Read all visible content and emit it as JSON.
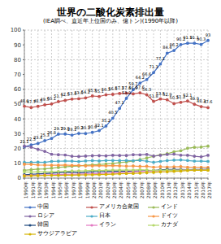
{
  "chart_data": {
    "type": "line",
    "title": "世界の二酸化炭素排出量",
    "subtitle": "(IEA調べ、直近年上位国のみ、億トン)(1990年以降)",
    "categories": [
      "1990年",
      "1991年",
      "1992年",
      "1993年",
      "1994年",
      "1995年",
      "1996年",
      "1997年",
      "1998年",
      "1999年",
      "2000年",
      "2001年",
      "2002年",
      "2003年",
      "2004年",
      "2005年",
      "2006年",
      "2007年",
      "2008年",
      "2009年",
      "2010年",
      "2011年",
      "2012年",
      "2013年",
      "2014年",
      "2015年",
      "2016年",
      "2017年"
    ],
    "ylim": [
      0,
      100
    ],
    "yticks": [
      0,
      10,
      20,
      30,
      40,
      50,
      60,
      70,
      80,
      90,
      100
    ],
    "grid": true,
    "legend": "bottom",
    "series": [
      {
        "name": "中国",
        "color": "#4472c4",
        "marker": "circle",
        "data_labels": true,
        "values": [
          21.1,
          22.5,
          23.4,
          25.3,
          26.8,
          29.7,
          29.8,
          29.1,
          30.2,
          30.1,
          30.9,
          32.1,
          35.2,
          40.5,
          47.1,
          53.9,
          59.7,
          64.2,
          66.6,
          71.3,
          77.1,
          84.4,
          86.2,
          90.2,
          91.1,
          91.1,
          90.3,
          93
        ]
      },
      {
        "name": "アメリカ合衆国",
        "color": "#c0504d",
        "marker": "circle",
        "data_labels": true,
        "values": [
          48.6,
          47.7,
          48.5,
          49.5,
          50.1,
          51.7,
          52.5,
          53.4,
          53.6,
          54.2,
          55.5,
          55.1,
          56.3,
          56.6,
          57.2,
          57.4,
          56.9,
          57.6,
          56.3,
          51.8,
          53.5,
          52.9,
          50.3,
          51.2,
          52.1,
          49.9,
          48.3,
          47.6
        ]
      },
      {
        "name": "インド",
        "color": "#9bbb59",
        "marker": "circle",
        "values": [
          5.3,
          5.7,
          6.1,
          6.3,
          6.7,
          7.2,
          7.6,
          8.0,
          8.2,
          8.7,
          9.0,
          9.2,
          9.5,
          9.8,
          10.5,
          10.9,
          11.6,
          12.5,
          13.6,
          14.8,
          15.7,
          16.5,
          17.8,
          18.5,
          20.2,
          20.8,
          21.0,
          21.6
        ]
      },
      {
        "name": "ロシア",
        "color": "#8064a2",
        "marker": "circle",
        "values": [
          21.6,
          20.9,
          19.4,
          18.1,
          16.1,
          15.8,
          15.6,
          14.8,
          14.6,
          14.9,
          15.1,
          15.2,
          15.0,
          15.4,
          15.3,
          15.3,
          15.8,
          15.7,
          16.0,
          14.9,
          15.4,
          16.0,
          16.2,
          15.5,
          15.4,
          14.8,
          14.4,
          15.4
        ]
      },
      {
        "name": "日本",
        "color": "#4bacc6",
        "marker": "circle",
        "values": [
          10.6,
          10.7,
          10.8,
          10.7,
          11.3,
          11.4,
          11.6,
          11.5,
          11.2,
          11.6,
          11.8,
          11.6,
          11.9,
          11.9,
          11.8,
          11.9,
          11.7,
          12.0,
          11.4,
          10.7,
          11.3,
          11.8,
          12.2,
          12.3,
          11.9,
          11.5,
          11.5,
          11.3
        ]
      },
      {
        "name": "ドイツ",
        "color": "#f79646",
        "marker": "circle",
        "values": [
          9.4,
          9.3,
          8.9,
          8.8,
          8.7,
          8.7,
          8.9,
          8.6,
          8.6,
          8.3,
          8.3,
          8.5,
          8.3,
          8.4,
          8.3,
          8.1,
          8.2,
          7.9,
          8.0,
          7.4,
          7.7,
          7.5,
          7.6,
          7.8,
          7.4,
          7.4,
          7.3,
          7.2
        ]
      },
      {
        "name": "韓国",
        "color": "#1f497d",
        "marker": "circle",
        "values": [
          2.3,
          2.6,
          2.8,
          3.1,
          3.4,
          3.6,
          3.9,
          4.1,
          3.6,
          3.9,
          4.3,
          4.4,
          4.5,
          4.6,
          4.7,
          4.6,
          4.7,
          4.9,
          5.0,
          5.1,
          5.6,
          5.9,
          5.9,
          5.8,
          5.7,
          5.8,
          5.9,
          6.0
        ]
      },
      {
        "name": "イラン",
        "color": "#e377c2",
        "marker": "circle",
        "values": [
          1.7,
          1.9,
          2.0,
          2.2,
          2.3,
          2.4,
          2.5,
          2.6,
          2.7,
          2.8,
          3.0,
          3.1,
          3.3,
          3.5,
          3.7,
          4.0,
          4.3,
          4.5,
          4.7,
          4.9,
          5.0,
          5.2,
          5.3,
          5.4,
          5.6,
          5.5,
          5.6,
          5.7
        ]
      },
      {
        "name": "カナダ",
        "color": "#b5d86a",
        "marker": "circle",
        "values": [
          4.2,
          4.1,
          4.3,
          4.2,
          4.3,
          4.5,
          4.6,
          4.8,
          4.9,
          5.0,
          5.3,
          5.2,
          5.3,
          5.4,
          5.4,
          5.5,
          5.4,
          5.7,
          5.5,
          5.2,
          5.3,
          5.4,
          5.3,
          5.4,
          5.5,
          5.5,
          5.4,
          5.5
        ]
      },
      {
        "name": "サウジアラビア",
        "color": "#d4b300",
        "marker": "circle",
        "values": [
          1.5,
          1.6,
          1.7,
          1.8,
          1.9,
          1.9,
          2.0,
          2.0,
          2.1,
          2.2,
          2.3,
          2.4,
          2.5,
          2.7,
          2.9,
          3.1,
          3.2,
          3.4,
          3.7,
          3.9,
          4.2,
          4.3,
          4.6,
          4.7,
          5.1,
          5.3,
          5.3,
          5.3
        ]
      }
    ]
  }
}
